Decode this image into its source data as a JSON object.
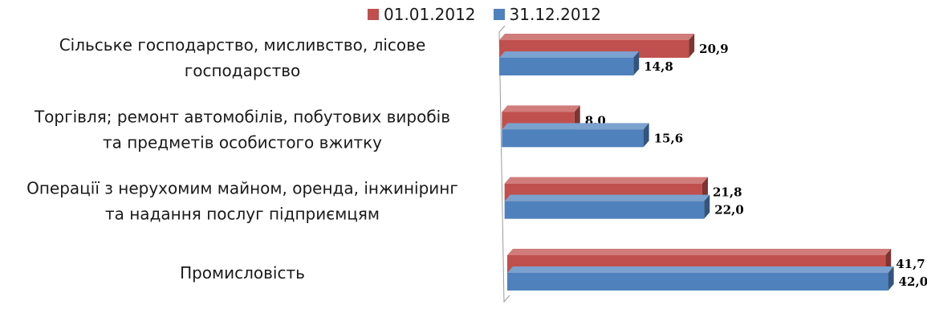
{
  "chart_data": {
    "type": "bar",
    "orientation": "horizontal",
    "style": "3d",
    "categories": [
      [
        "Сільське господарство, мисливство, лісове",
        "господарство"
      ],
      [
        "Торгівля; ремонт автомобілів, побутових виробів",
        "та предметів особистого вжитку"
      ],
      [
        "Операції з нерухомим майном, оренда, інжиніринг",
        "та надання послуг підприємцям"
      ],
      [
        "Промисловість"
      ]
    ],
    "series": [
      {
        "name": "01.01.2012",
        "color": "#c0504d",
        "values": [
          20.9,
          8.0,
          21.8,
          41.7
        ],
        "labels": [
          "20,9",
          "8,0",
          "21,8",
          "41,7"
        ]
      },
      {
        "name": "31.12.2012",
        "color": "#4f81bd",
        "values": [
          14.8,
          15.6,
          22.0,
          42.0
        ],
        "labels": [
          "14,8",
          "15,6",
          "22,0",
          "42,0"
        ]
      }
    ],
    "xlim": [
      0,
      42.5
    ],
    "grid": false,
    "legend": "top"
  }
}
